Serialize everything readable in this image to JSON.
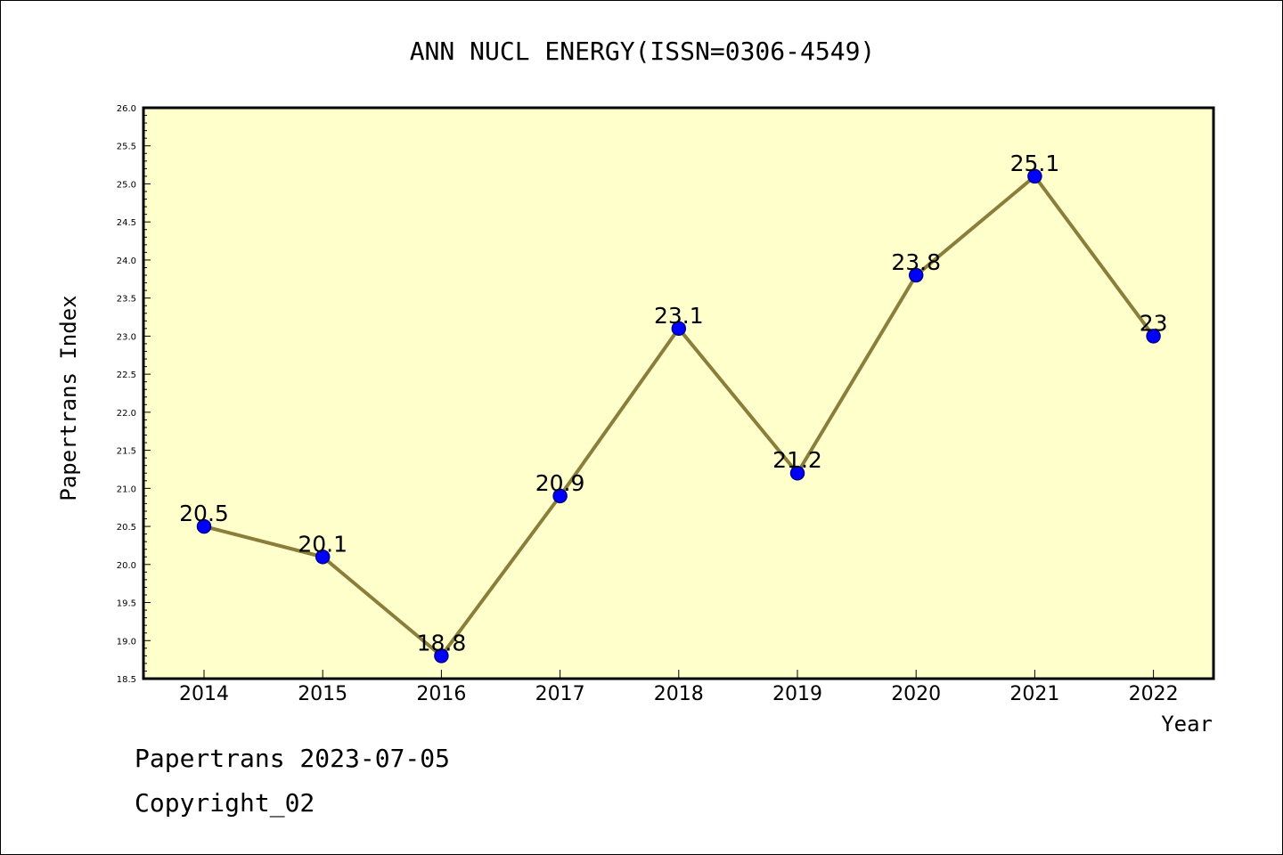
{
  "chart_data": {
    "type": "line",
    "title": "ANN NUCL ENERGY(ISSN=0306-4549)",
    "xlabel": "Year",
    "ylabel": "Papertrans Index",
    "categories": [
      "2014",
      "2015",
      "2016",
      "2017",
      "2018",
      "2019",
      "2020",
      "2021",
      "2022"
    ],
    "series": [
      {
        "values": [
          20.5,
          20.1,
          18.8,
          20.9,
          23.1,
          21.2,
          23.8,
          25.1,
          23.0
        ],
        "labels": [
          "20.5",
          "20.1",
          "18.8",
          "20.9",
          "23.1",
          "21.2",
          "23.8",
          "25.1",
          "23"
        ]
      }
    ],
    "ylim": [
      18.5,
      26.0
    ],
    "yticks": [
      "18.5",
      "19.0",
      "19.5",
      "20.0",
      "20.5",
      "21.0",
      "21.5",
      "22.0",
      "22.5",
      "23.0",
      "23.5",
      "24.0",
      "24.5",
      "25.0",
      "25.5",
      "26.0"
    ],
    "grid": false,
    "colors": {
      "plot_background": "#ffffcc",
      "line": "#8b7d3a",
      "marker": "#0000ff",
      "marker_edge": "#00008b"
    }
  },
  "footer": {
    "line1": "Papertrans 2023-07-05",
    "line2": "Copyright_02"
  }
}
